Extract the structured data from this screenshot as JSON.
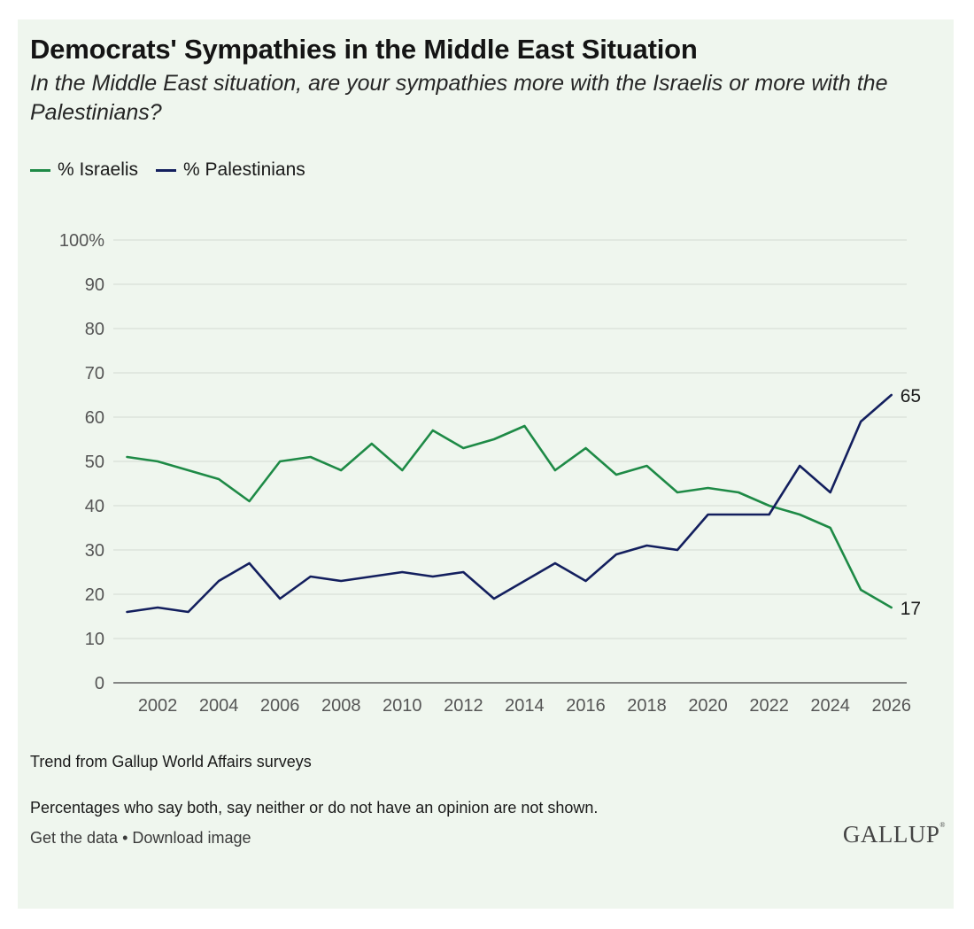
{
  "chart_data": {
    "type": "line",
    "title": "Democrats' Sympathies in the Middle East Situation",
    "subtitle": "In the Middle East situation, are your sympathies more with the Israelis or more with the Palestinians?",
    "xlabel": "",
    "ylabel": "",
    "ylim": [
      0,
      100
    ],
    "y_ticks": [
      "0",
      "10",
      "20",
      "30",
      "40",
      "50",
      "60",
      "70",
      "80",
      "90",
      "100%"
    ],
    "x_ticks": [
      "2002",
      "2004",
      "2006",
      "2008",
      "2010",
      "2012",
      "2014",
      "2016",
      "2018",
      "2020",
      "2022",
      "2024",
      "2026"
    ],
    "xlim": [
      2000.55,
      2026.5
    ],
    "grid": true,
    "legend_position": "top-left",
    "x": [
      2001,
      2002,
      2003,
      2004,
      2005,
      2006,
      2007,
      2008,
      2009,
      2010,
      2011,
      2012,
      2013,
      2014,
      2015,
      2016,
      2017,
      2018,
      2019,
      2020,
      2021,
      2022,
      2023,
      2024,
      2025,
      2026
    ],
    "series": [
      {
        "name": "% Israelis",
        "color": "#1e8a46",
        "values": [
          51,
          50,
          48,
          46,
          41,
          50,
          51,
          48,
          54,
          48,
          57,
          53,
          55,
          58,
          48,
          53,
          47,
          49,
          43,
          44,
          43,
          40,
          38,
          35,
          21,
          17
        ],
        "end_label": "17"
      },
      {
        "name": "% Palestinians",
        "color": "#131f5e",
        "values": [
          16,
          17,
          16,
          23,
          27,
          19,
          24,
          23,
          24,
          25,
          24,
          25,
          19,
          23,
          27,
          23,
          29,
          31,
          30,
          38,
          38,
          38,
          49,
          43,
          59,
          65
        ],
        "end_label": "65"
      }
    ]
  },
  "notes": {
    "trend": "Trend from Gallup World Affairs surveys",
    "percentages": "Percentages who say both, say neither or do not have an opinion are not shown."
  },
  "footer": {
    "get_data": "Get the data",
    "separator": "•",
    "download": "Download image",
    "logo": "GALLUP",
    "logo_mark": "®"
  }
}
